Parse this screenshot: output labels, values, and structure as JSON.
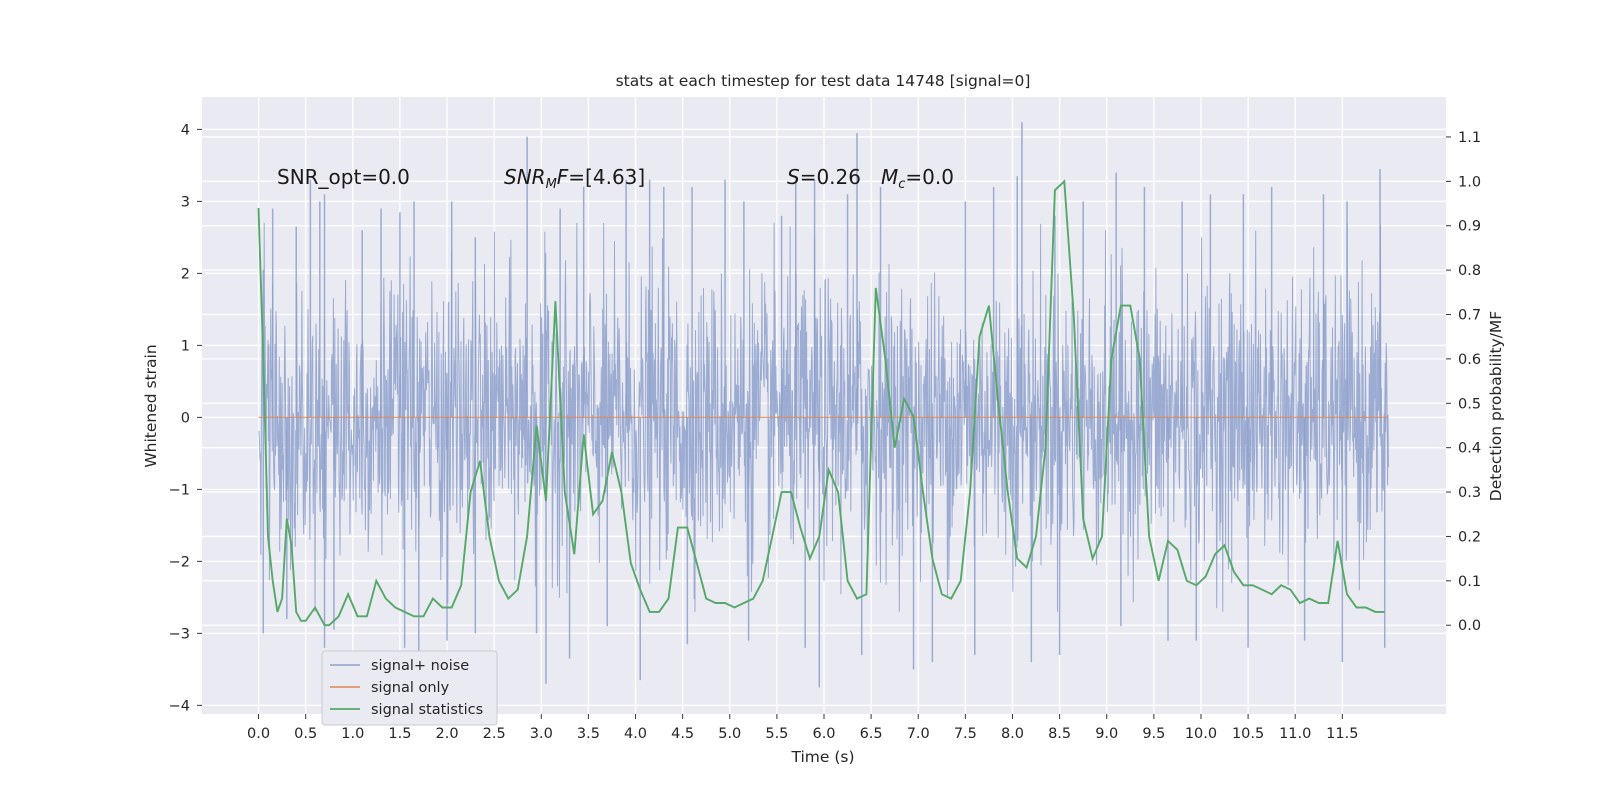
{
  "chart_data": {
    "type": "line",
    "title": "stats at each timestep for test data 14748 [signal=0]",
    "xlabel": "Time (s)",
    "ylabel": "Whitened strain",
    "y2label": "Detection probability/MF",
    "xlim": [
      -0.6,
      12.6
    ],
    "ylim": [
      -4.12,
      4.45
    ],
    "y2lim": [
      -0.2,
      1.19
    ],
    "xticks": [
      "0.0",
      "0.5",
      "1.0",
      "1.5",
      "2.0",
      "2.5",
      "3.0",
      "3.5",
      "4.0",
      "4.5",
      "5.0",
      "5.5",
      "6.0",
      "6.5",
      "7.0",
      "7.5",
      "8.0",
      "8.5",
      "9.0",
      "9.5",
      "10.0",
      "10.5",
      "11.0",
      "11.5"
    ],
    "yticks": [
      "4",
      "3",
      "2",
      "1",
      "0",
      "−1",
      "−2",
      "−3",
      "−4"
    ],
    "y2ticks": [
      "1.1",
      "1.0",
      "0.9",
      "0.8",
      "0.7",
      "0.6",
      "0.5",
      "0.4",
      "0.3",
      "0.2",
      "0.1",
      "0.0"
    ],
    "annotations": {
      "snr_opt": "SNR_opt=0.0",
      "snr_mf_main": "SNR",
      "snr_mf_sub": "M",
      "snr_mf_rest": "F=[4.63]",
      "s_sym": "S",
      "s_val": "=0.26",
      "mc_sym": "M",
      "mc_sub": "c",
      "mc_val": "=0.0"
    },
    "legend": {
      "location": "lower-left",
      "entries": [
        "signal+ noise",
        "signal only",
        "signal statistics"
      ]
    },
    "colors": {
      "noise": "#8da0cb",
      "signal": "#dd8452",
      "stats": "#55a868",
      "background": "#eaeaf2",
      "grid": "#ffffff"
    },
    "series": [
      {
        "name": "signal+ noise",
        "axis": "left",
        "description": "dense whitened strain noise, 0 to 12 s",
        "t_range": [
          0.0,
          11.99
        ],
        "spikes_up": [
          [
            0.05,
            2.05
          ],
          [
            0.15,
            2.9
          ],
          [
            0.4,
            2.65
          ],
          [
            0.55,
            3.3
          ],
          [
            0.65,
            3.0
          ],
          [
            0.7,
            3.1
          ],
          [
            1.1,
            2.6
          ],
          [
            1.3,
            2.9
          ],
          [
            1.5,
            2.85
          ],
          [
            1.65,
            3.0
          ],
          [
            2.05,
            3.0
          ],
          [
            2.3,
            2.5
          ],
          [
            2.85,
            3.9
          ],
          [
            3.2,
            2.9
          ],
          [
            3.45,
            3.2
          ],
          [
            3.9,
            3.3
          ],
          [
            4.15,
            3.3
          ],
          [
            4.3,
            3.2
          ],
          [
            4.6,
            3.2
          ],
          [
            4.95,
            3.3
          ],
          [
            5.15,
            3.0
          ],
          [
            5.55,
            2.8
          ],
          [
            5.7,
            3.3
          ],
          [
            5.9,
            3.3
          ],
          [
            6.25,
            3.1
          ],
          [
            6.35,
            3.95
          ],
          [
            6.6,
            3.2
          ],
          [
            7.5,
            3.0
          ],
          [
            7.8,
            3.2
          ],
          [
            8.05,
            3.35
          ],
          [
            8.1,
            4.1
          ],
          [
            8.45,
            2.8
          ],
          [
            8.75,
            3.0
          ],
          [
            9.1,
            3.4
          ],
          [
            9.4,
            3.2
          ],
          [
            9.8,
            3.0
          ],
          [
            10.1,
            3.1
          ],
          [
            10.45,
            3.1
          ],
          [
            10.75,
            3.2
          ],
          [
            11.3,
            3.1
          ],
          [
            11.55,
            3.0
          ],
          [
            11.9,
            3.45
          ]
        ],
        "spikes_down": [
          [
            0.05,
            -3.0
          ],
          [
            0.3,
            -2.8
          ],
          [
            0.7,
            -3.2
          ],
          [
            0.8,
            -2.95
          ],
          [
            1.55,
            -3.2
          ],
          [
            1.7,
            -3.4
          ],
          [
            2.0,
            -3.1
          ],
          [
            2.3,
            -3.0
          ],
          [
            2.95,
            -3.0
          ],
          [
            3.05,
            -3.7
          ],
          [
            3.3,
            -3.35
          ],
          [
            3.7,
            -2.9
          ],
          [
            4.05,
            -3.65
          ],
          [
            4.55,
            -3.15
          ],
          [
            5.2,
            -3.1
          ],
          [
            5.8,
            -3.2
          ],
          [
            5.95,
            -3.75
          ],
          [
            6.4,
            -3.3
          ],
          [
            6.95,
            -3.5
          ],
          [
            7.15,
            -3.4
          ],
          [
            7.6,
            -3.3
          ],
          [
            8.2,
            -3.4
          ],
          [
            8.5,
            -3.3
          ],
          [
            9.15,
            -2.9
          ],
          [
            9.65,
            -3.1
          ],
          [
            9.95,
            -3.1
          ],
          [
            10.5,
            -3.2
          ],
          [
            11.1,
            -3.1
          ],
          [
            11.5,
            -3.4
          ],
          [
            11.95,
            -3.2
          ]
        ]
      },
      {
        "name": "signal only",
        "axis": "left",
        "t": [
          0.0,
          11.99
        ],
        "values": [
          0.0,
          0.0
        ]
      },
      {
        "name": "signal statistics",
        "axis": "right",
        "t": [
          0.0,
          0.05,
          0.1,
          0.15,
          0.2,
          0.25,
          0.3,
          0.35,
          0.4,
          0.45,
          0.5,
          0.6,
          0.7,
          0.75,
          0.85,
          0.95,
          1.05,
          1.15,
          1.25,
          1.35,
          1.45,
          1.55,
          1.65,
          1.75,
          1.85,
          1.95,
          2.05,
          2.15,
          2.25,
          2.35,
          2.45,
          2.55,
          2.65,
          2.75,
          2.85,
          2.95,
          3.05,
          3.15,
          3.25,
          3.35,
          3.45,
          3.55,
          3.65,
          3.75,
          3.85,
          3.95,
          4.05,
          4.15,
          4.25,
          4.35,
          4.45,
          4.55,
          4.65,
          4.75,
          4.85,
          4.95,
          5.05,
          5.15,
          5.25,
          5.35,
          5.45,
          5.55,
          5.65,
          5.75,
          5.85,
          5.95,
          6.05,
          6.15,
          6.25,
          6.35,
          6.45,
          6.55,
          6.65,
          6.75,
          6.85,
          6.95,
          7.05,
          7.15,
          7.25,
          7.35,
          7.45,
          7.55,
          7.65,
          7.75,
          7.85,
          7.95,
          8.05,
          8.15,
          8.25,
          8.35,
          8.45,
          8.55,
          8.65,
          8.75,
          8.85,
          8.95,
          9.05,
          9.15,
          9.25,
          9.35,
          9.45,
          9.55,
          9.65,
          9.75,
          9.85,
          9.95,
          10.05,
          10.15,
          10.25,
          10.35,
          10.45,
          10.55,
          10.65,
          10.75,
          10.85,
          10.95,
          11.05,
          11.15,
          11.25,
          11.35,
          11.45,
          11.55,
          11.65,
          11.75,
          11.85,
          11.95
        ],
        "values": [
          0.94,
          0.6,
          0.2,
          0.1,
          0.03,
          0.06,
          0.24,
          0.18,
          0.03,
          0.01,
          0.01,
          0.04,
          0.0,
          0.0,
          0.02,
          0.07,
          0.02,
          0.02,
          0.1,
          0.06,
          0.04,
          0.03,
          0.02,
          0.02,
          0.06,
          0.04,
          0.04,
          0.09,
          0.3,
          0.37,
          0.2,
          0.1,
          0.06,
          0.08,
          0.2,
          0.45,
          0.28,
          0.73,
          0.3,
          0.16,
          0.43,
          0.25,
          0.28,
          0.39,
          0.3,
          0.14,
          0.08,
          0.03,
          0.03,
          0.06,
          0.22,
          0.22,
          0.14,
          0.06,
          0.05,
          0.05,
          0.04,
          0.05,
          0.06,
          0.1,
          0.2,
          0.3,
          0.3,
          0.22,
          0.15,
          0.2,
          0.35,
          0.3,
          0.1,
          0.06,
          0.07,
          0.76,
          0.6,
          0.4,
          0.51,
          0.47,
          0.3,
          0.15,
          0.07,
          0.06,
          0.1,
          0.3,
          0.65,
          0.72,
          0.5,
          0.3,
          0.15,
          0.13,
          0.2,
          0.4,
          0.98,
          1.0,
          0.7,
          0.24,
          0.15,
          0.2,
          0.6,
          0.72,
          0.72,
          0.6,
          0.2,
          0.1,
          0.19,
          0.17,
          0.1,
          0.09,
          0.11,
          0.16,
          0.18,
          0.12,
          0.09,
          0.09,
          0.08,
          0.07,
          0.09,
          0.08,
          0.05,
          0.06,
          0.05,
          0.05,
          0.19,
          0.07,
          0.04,
          0.04,
          0.03,
          0.03
        ]
      }
    ]
  }
}
